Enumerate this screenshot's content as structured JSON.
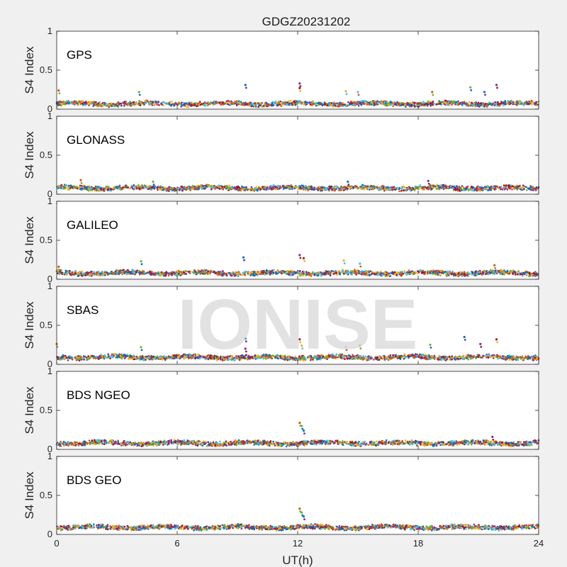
{
  "chart_data": {
    "type": "scatter",
    "title": "GDGZ20231202",
    "xlabel": "UT(h)",
    "ylabel": "S4 Index",
    "xlim": [
      0,
      24
    ],
    "ylim": [
      0,
      1
    ],
    "xticks": [
      "0",
      "6",
      "12",
      "18",
      "24"
    ],
    "yticks": [
      "0",
      "0.5",
      "1"
    ],
    "watermark": "IONISE",
    "series_colors": [
      "#0072bd",
      "#d95319",
      "#edb120",
      "#7e2f8e",
      "#77ac30",
      "#4dbeee",
      "#a2142f"
    ],
    "panels": [
      {
        "label": "GPS",
        "baseline": 0.07,
        "spikes": [
          {
            "x": 0.1,
            "y": 0.24
          },
          {
            "x": 4.1,
            "y": 0.22
          },
          {
            "x": 9.4,
            "y": 0.31
          },
          {
            "x": 12.1,
            "y": 0.33
          },
          {
            "x": 12.1,
            "y": 0.27
          },
          {
            "x": 14.4,
            "y": 0.23
          },
          {
            "x": 15.0,
            "y": 0.22
          },
          {
            "x": 18.7,
            "y": 0.22
          },
          {
            "x": 20.6,
            "y": 0.28
          },
          {
            "x": 21.3,
            "y": 0.22
          },
          {
            "x": 21.9,
            "y": 0.31
          }
        ]
      },
      {
        "label": "GLONASS",
        "baseline": 0.08,
        "spikes": [
          {
            "x": 1.2,
            "y": 0.18
          },
          {
            "x": 4.8,
            "y": 0.16
          },
          {
            "x": 14.5,
            "y": 0.16
          },
          {
            "x": 18.5,
            "y": 0.17
          }
        ]
      },
      {
        "label": "GALILEO",
        "baseline": 0.08,
        "spikes": [
          {
            "x": 0.1,
            "y": 0.16
          },
          {
            "x": 4.2,
            "y": 0.23
          },
          {
            "x": 9.3,
            "y": 0.28
          },
          {
            "x": 12.1,
            "y": 0.31
          },
          {
            "x": 12.3,
            "y": 0.27
          },
          {
            "x": 14.3,
            "y": 0.24
          },
          {
            "x": 15.1,
            "y": 0.2
          },
          {
            "x": 21.8,
            "y": 0.18
          }
        ]
      },
      {
        "label": "SBAS",
        "baseline": 0.09,
        "spikes": [
          {
            "x": 0.0,
            "y": 0.26
          },
          {
            "x": 4.2,
            "y": 0.22
          },
          {
            "x": 9.4,
            "y": 0.33
          },
          {
            "x": 9.4,
            "y": 0.2
          },
          {
            "x": 12.1,
            "y": 0.32
          },
          {
            "x": 12.2,
            "y": 0.24
          },
          {
            "x": 14.4,
            "y": 0.22
          },
          {
            "x": 15.1,
            "y": 0.24
          },
          {
            "x": 18.6,
            "y": 0.25
          },
          {
            "x": 20.3,
            "y": 0.35
          },
          {
            "x": 21.1,
            "y": 0.26
          },
          {
            "x": 21.9,
            "y": 0.32
          }
        ]
      },
      {
        "label": "BDS NGEO",
        "baseline": 0.08,
        "spikes": [
          {
            "x": 12.1,
            "y": 0.34
          },
          {
            "x": 12.2,
            "y": 0.3
          },
          {
            "x": 12.3,
            "y": 0.24
          },
          {
            "x": 21.7,
            "y": 0.16
          }
        ]
      },
      {
        "label": "BDS GEO",
        "baseline": 0.09,
        "spikes": [
          {
            "x": 12.1,
            "y": 0.33
          },
          {
            "x": 12.2,
            "y": 0.28
          },
          {
            "x": 12.3,
            "y": 0.23
          }
        ]
      }
    ]
  }
}
